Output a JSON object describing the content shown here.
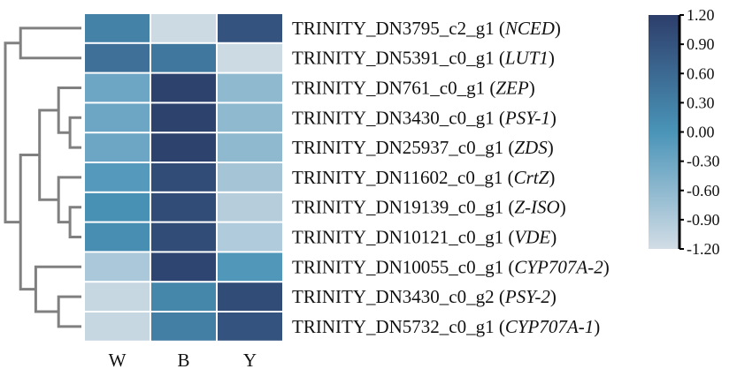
{
  "chart_data": {
    "type": "heatmap",
    "title": "",
    "columns": [
      "W",
      "B",
      "Y"
    ],
    "rows": [
      {
        "id": "TRINITY_DN3795_c2_g1",
        "gene": "NCED"
      },
      {
        "id": "TRINITY_DN5391_c0_g1",
        "gene": "LUT1"
      },
      {
        "id": "TRINITY_DN761_c0_g1",
        "gene": "ZEP"
      },
      {
        "id": "TRINITY_DN3430_c0_g1",
        "gene": "PSY-1"
      },
      {
        "id": "TRINITY_DN25937_c0_g1",
        "gene": "ZDS"
      },
      {
        "id": "TRINITY_DN11602_c0_g1",
        "gene": "CrtZ"
      },
      {
        "id": "TRINITY_DN19139_c0_g1",
        "gene": "Z-ISO"
      },
      {
        "id": "TRINITY_DN10121_c0_g1",
        "gene": "VDE"
      },
      {
        "id": "TRINITY_DN10055_c0_g1",
        "gene": "CYP707A-2"
      },
      {
        "id": "TRINITY_DN3430_c0_g2",
        "gene": "PSY-2"
      },
      {
        "id": "TRINITY_DN5732_c0_g1",
        "gene": "CYP707A-1"
      }
    ],
    "values": [
      [
        0.25,
        -1.15,
        0.9
      ],
      [
        0.5,
        0.4,
        -1.15
      ],
      [
        -0.3,
        1.15,
        -0.6
      ],
      [
        -0.3,
        1.15,
        -0.6
      ],
      [
        -0.3,
        1.15,
        -0.6
      ],
      [
        -0.1,
        1.0,
        -0.8
      ],
      [
        0.05,
        1.0,
        -0.95
      ],
      [
        0.1,
        1.0,
        -0.9
      ],
      [
        -0.85,
        1.1,
        -0.05
      ],
      [
        -1.1,
        0.2,
        1.0
      ],
      [
        -1.1,
        0.3,
        0.9
      ]
    ],
    "colorbar": {
      "min": -1.2,
      "max": 1.2,
      "ticks": [
        "1.20",
        "0.90",
        "0.60",
        "0.30",
        "0.00",
        "-0.30",
        "-0.60",
        "-0.90",
        "-1.20"
      ],
      "low_color": "#d2dde6",
      "mid_color": "#4a94b8",
      "high_color": "#2d3e6b"
    },
    "dendrogram": {
      "merges": [
        [
          3,
          4,
          0.15
        ],
        [
          2,
          11,
          0.3
        ],
        [
          6,
          7,
          0.15
        ],
        [
          5,
          13,
          0.3
        ],
        [
          12,
          14,
          0.55
        ],
        [
          9,
          10,
          0.3
        ],
        [
          8,
          16,
          0.6
        ],
        [
          0,
          1,
          0.8
        ],
        [
          15,
          17,
          0.8
        ],
        [
          18,
          19,
          1.0
        ]
      ],
      "line_color": "#808080"
    }
  }
}
